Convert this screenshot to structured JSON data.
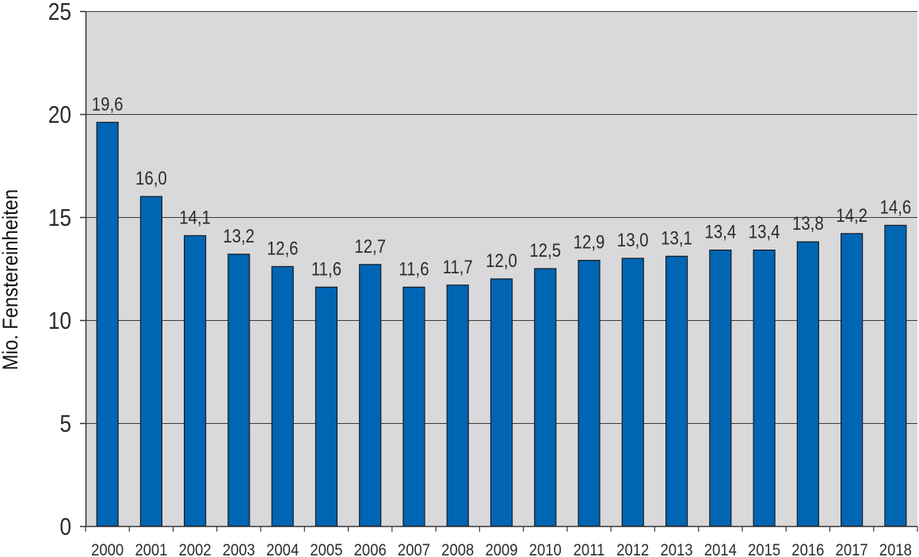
{
  "chart_data": {
    "type": "bar",
    "title": "",
    "xlabel": "",
    "ylabel": "Mio. Fenstereinheiten",
    "categories": [
      "2000",
      "2001",
      "2002",
      "2003",
      "2004",
      "2005",
      "2006",
      "2007",
      "2008",
      "2009",
      "2010",
      "2011",
      "2012",
      "2013",
      "2014",
      "2015",
      "2016",
      "2017",
      "2018"
    ],
    "values": [
      19.6,
      16.0,
      14.1,
      13.2,
      12.6,
      11.6,
      12.7,
      11.6,
      11.7,
      12.0,
      12.5,
      12.9,
      13.0,
      13.1,
      13.4,
      13.4,
      13.8,
      14.2,
      14.6
    ],
    "value_labels": [
      "19,6",
      "16,0",
      "14,1",
      "13,2",
      "12,6",
      "11,6",
      "12,7",
      "11,6",
      "11,7",
      "12,0",
      "12,5",
      "12,9",
      "13,0",
      "13,1",
      "13,4",
      "13,4",
      "13,8",
      "14,2",
      "14,6"
    ],
    "ylim": [
      0,
      25
    ],
    "yticks": [
      0,
      5,
      10,
      15,
      20,
      25
    ],
    "grid": true,
    "legend": "none",
    "colors": {
      "bar": "#0065b3",
      "bar_edge": "#1a1a1a",
      "plot_background": "#d9d9db",
      "gridline": "#3a3a3a",
      "axis": "#333333",
      "text": "#2b2b2b"
    }
  }
}
